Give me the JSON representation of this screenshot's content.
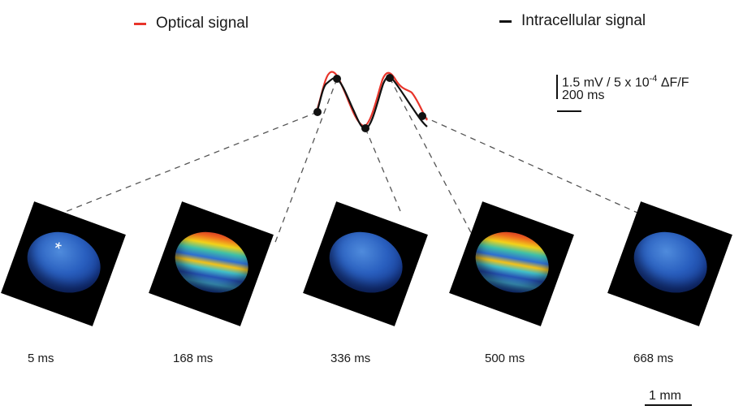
{
  "legend": {
    "optical": {
      "label": "Optical signal",
      "color": "#e8342a"
    },
    "intracellular": {
      "label": "Intracellular signal",
      "color": "#111111"
    }
  },
  "scale_bar": {
    "amplitude": "1.5 mV / 5 x 10",
    "amplitude_exp": "-4",
    "amplitude_unit": "ΔF/F",
    "time": "200 ms",
    "distance": "1 mm"
  },
  "panels": [
    {
      "time": "5 ms",
      "activity": "low",
      "marker": "*"
    },
    {
      "time": "168 ms",
      "activity": "high",
      "marker": ""
    },
    {
      "time": "336 ms",
      "activity": "low",
      "marker": ""
    },
    {
      "time": "500 ms",
      "activity": "high",
      "marker": ""
    },
    {
      "time": "668 ms",
      "activity": "low",
      "marker": ""
    }
  ]
}
